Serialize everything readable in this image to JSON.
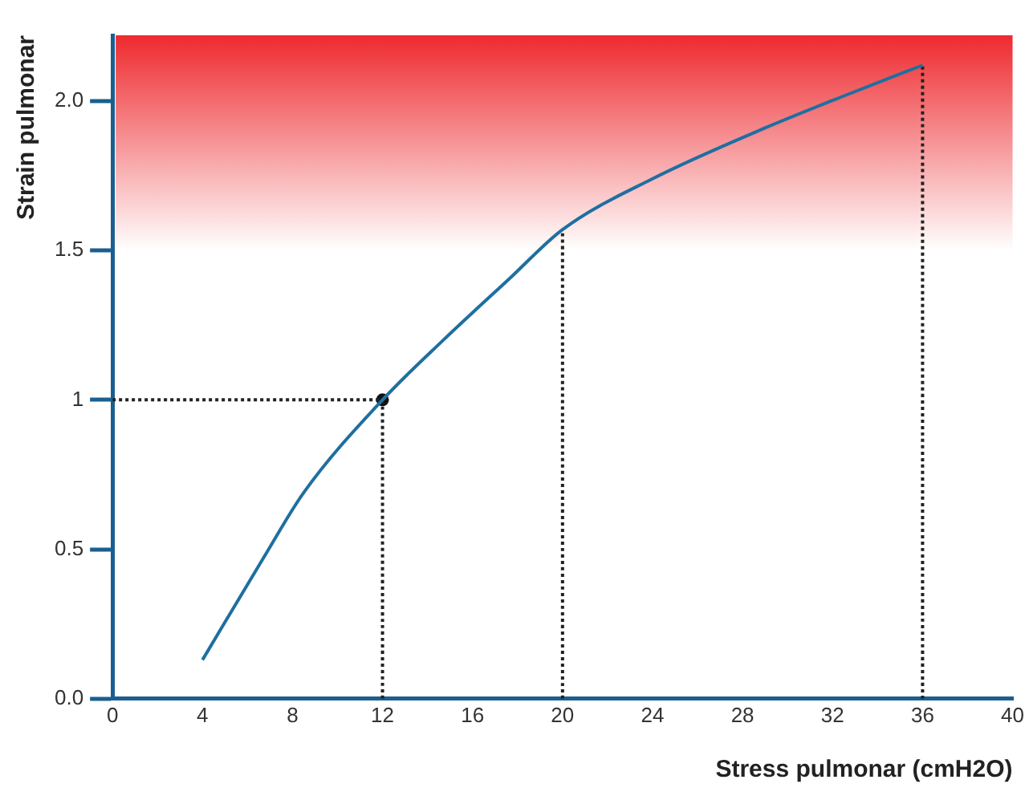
{
  "chart_data": {
    "type": "line",
    "xlabel": "Stress pulmonar (cmH2O)",
    "ylabel": "Strain pulmonar",
    "xlim": [
      0,
      40
    ],
    "xticks": [
      0,
      4,
      8,
      12,
      16,
      20,
      24,
      28,
      32,
      36,
      40
    ],
    "ylim": [
      0,
      2.22
    ],
    "yticks": [
      {
        "value": 0,
        "label": "0.0"
      },
      0.5,
      1,
      1.5,
      {
        "value": 2,
        "label": "2.0"
      }
    ],
    "bands": [
      {
        "axis": "y",
        "from": 1.5,
        "to": 2.22,
        "color": "#ee2a2f"
      }
    ],
    "series": [
      {
        "color": "#1f6fa0",
        "marker": "none",
        "x": [
          4,
          6.7,
          8.5,
          12,
          14.7,
          17.7,
          20,
          24,
          29,
          32.6,
          36
        ],
        "values": [
          0.13,
          0.47,
          0.69,
          1,
          1.2,
          1.41,
          1.57,
          1.74,
          1.91,
          2.02,
          2.12
        ]
      },
      {
        "type": "line",
        "color": "#222222",
        "marker": "none",
        "line_style": "dotted",
        "x": [
          0,
          12
        ],
        "values": [
          1,
          1
        ]
      },
      {
        "type": "line",
        "color": "#222222",
        "marker": "none",
        "line_style": "dotted",
        "x": [
          12,
          12
        ],
        "values": [
          0,
          1
        ]
      },
      {
        "type": "line",
        "color": "#222222",
        "marker": "none",
        "line_style": "dotted",
        "x": [
          20,
          20
        ],
        "values": [
          0,
          1.57
        ]
      },
      {
        "type": "line",
        "color": "#222222",
        "marker": "none",
        "line_style": "dotted",
        "x": [
          36,
          36
        ],
        "values": [
          0,
          2.12
        ]
      },
      {
        "type": "scatter",
        "color": "#111111",
        "marker": "circle",
        "x": [
          12
        ],
        "values": [
          1
        ]
      }
    ],
    "grid": false,
    "legend": false
  }
}
